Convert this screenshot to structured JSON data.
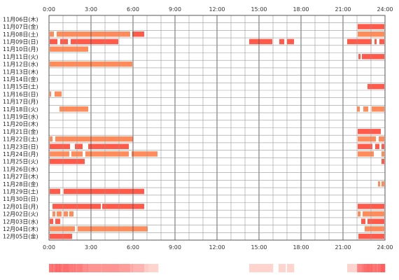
{
  "chart_data": {
    "type": "heatmap",
    "title": "",
    "xlabel": "",
    "ylabel": "",
    "x_range": [
      0,
      24
    ],
    "x_ticks": [
      "0:00",
      "3:00",
      "6:00",
      "9:00",
      "12:00",
      "15:00",
      "18:00",
      "21:00",
      "24:00"
    ],
    "grid": true,
    "colors": {
      "bar_light": "#ff8c5a",
      "bar_dark": "#ff5a4a",
      "grid": "#999999",
      "grid_dark": "#555555"
    },
    "rows": [
      {
        "label": "11月06日(木)",
        "segments": []
      },
      {
        "label": "11月07日(金)",
        "segments": [
          [
            22.05,
            23.95,
            0
          ]
        ]
      },
      {
        "label": "11月08日(土)",
        "segments": [
          [
            0.05,
            0.35,
            1
          ],
          [
            0.55,
            5.8,
            1
          ],
          [
            5.95,
            6.8,
            0
          ],
          [
            22.05,
            23.95,
            1
          ]
        ]
      },
      {
        "label": "11月09日(日)",
        "segments": [
          [
            0.05,
            0.6,
            0
          ],
          [
            0.8,
            1.35,
            0
          ],
          [
            1.55,
            4.95,
            0
          ],
          [
            14.3,
            15.95,
            0
          ],
          [
            16.45,
            16.8,
            0
          ],
          [
            17.0,
            17.5,
            0
          ],
          [
            21.3,
            23.05,
            0
          ],
          [
            23.25,
            23.4,
            0
          ],
          [
            23.6,
            23.95,
            0
          ]
        ]
      },
      {
        "label": "11月10日(月)",
        "segments": [
          [
            0.05,
            1.85,
            1
          ],
          [
            1.85,
            2.8,
            1
          ]
        ]
      },
      {
        "label": "11月11日(火)",
        "segments": [
          [
            22.1,
            22.25,
            0
          ],
          [
            22.35,
            23.95,
            0
          ]
        ]
      },
      {
        "label": "11月12日(水)",
        "segments": [
          [
            0.05,
            5.95,
            1
          ]
        ]
      },
      {
        "label": "11月13日(木)",
        "segments": []
      },
      {
        "label": "11月14日(金)",
        "segments": []
      },
      {
        "label": "11月15日(土)",
        "segments": [
          [
            22.75,
            23.95,
            0
          ]
        ]
      },
      {
        "label": "11月16日(日)",
        "segments": [
          [
            0.05,
            0.15,
            1
          ],
          [
            0.4,
            0.9,
            1
          ]
        ]
      },
      {
        "label": "11月17日(月)",
        "segments": []
      },
      {
        "label": "11月18日(火)",
        "segments": [
          [
            0.75,
            2.8,
            1
          ],
          [
            22.0,
            22.2,
            1
          ],
          [
            22.45,
            22.8,
            1
          ],
          [
            23.05,
            23.95,
            1
          ]
        ]
      },
      {
        "label": "11月19日(水)",
        "segments": []
      },
      {
        "label": "11月20日(木)",
        "segments": []
      },
      {
        "label": "11月21日(金)",
        "segments": [
          [
            22.05,
            23.7,
            0
          ]
        ]
      },
      {
        "label": "11月22日(土)",
        "segments": [
          [
            0.05,
            0.25,
            1
          ],
          [
            0.45,
            6.0,
            1
          ],
          [
            22.05,
            23.35,
            1
          ],
          [
            23.55,
            23.95,
            1
          ]
        ]
      },
      {
        "label": "11月23日(日)",
        "segments": [
          [
            0.05,
            1.5,
            0
          ],
          [
            1.85,
            2.4,
            0
          ],
          [
            2.8,
            5.7,
            0
          ],
          [
            22.05,
            23.1,
            0
          ],
          [
            23.3,
            23.6,
            0
          ],
          [
            23.75,
            23.95,
            0
          ]
        ]
      },
      {
        "label": "11月24日(月)",
        "segments": [
          [
            0.05,
            1.45,
            1
          ],
          [
            1.6,
            2.4,
            1
          ],
          [
            2.6,
            5.7,
            1
          ],
          [
            5.9,
            7.75,
            1
          ],
          [
            22.05,
            23.2,
            1
          ],
          [
            23.75,
            23.95,
            1
          ]
        ]
      },
      {
        "label": "11月25日(火)",
        "segments": [
          [
            0.05,
            2.55,
            0
          ],
          [
            23.75,
            23.95,
            0
          ]
        ]
      },
      {
        "label": "11月26日(水)",
        "segments": []
      },
      {
        "label": "11月27日(木)",
        "segments": []
      },
      {
        "label": "11月28日(金)",
        "segments": [
          [
            23.5,
            23.65,
            1
          ],
          [
            23.75,
            23.95,
            1
          ]
        ]
      },
      {
        "label": "11月29日(土)",
        "segments": [
          [
            0.05,
            0.8,
            0
          ],
          [
            1.05,
            6.8,
            0
          ]
        ]
      },
      {
        "label": "11月30日(日)",
        "segments": []
      },
      {
        "label": "12月01日(月)",
        "segments": [
          [
            0.25,
            3.7,
            0
          ],
          [
            3.8,
            6.8,
            0
          ],
          [
            22.05,
            23.95,
            0
          ]
        ]
      },
      {
        "label": "12月02日(火)",
        "segments": [
          [
            0.25,
            0.45,
            1
          ],
          [
            0.55,
            0.9,
            1
          ],
          [
            1.05,
            1.35,
            1
          ],
          [
            1.45,
            1.75,
            1
          ],
          [
            22.05,
            22.25,
            1
          ],
          [
            22.4,
            23.95,
            1
          ]
        ]
      },
      {
        "label": "12月03日(水)",
        "segments": [
          [
            0.05,
            0.3,
            0
          ],
          [
            0.45,
            0.8,
            0
          ],
          [
            22.3,
            22.6,
            0
          ],
          [
            22.75,
            23.95,
            0
          ]
        ]
      },
      {
        "label": "12月04日(木)",
        "segments": [
          [
            0.05,
            1.85,
            1
          ],
          [
            2.05,
            7.05,
            1
          ],
          [
            22.55,
            23.95,
            1
          ]
        ]
      },
      {
        "label": "12月05日(金)",
        "segments": [
          [
            0.05,
            1.65,
            0
          ],
          [
            22.1,
            23.95,
            0
          ]
        ]
      }
    ]
  }
}
